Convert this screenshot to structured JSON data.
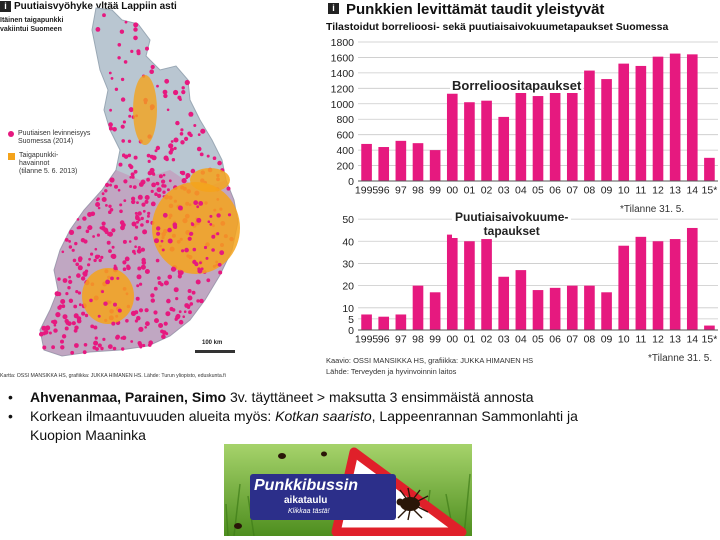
{
  "map": {
    "badge": "i",
    "title": "Puutiaisvyöhyke yltää Lappiin asti",
    "subtitle_lines": [
      "Itäinen taigapunkki",
      "vakiintui Suomeen"
    ],
    "legend": [
      {
        "label_lines": [
          "Puutiaisen levinneisyys",
          "Suomessa (2014)"
        ],
        "color": "#e6197f"
      },
      {
        "label_lines": [
          "Taigapunkki-",
          "havainnot",
          "(tilanne 5. 6. 2013)"
        ],
        "color": "#f4a31b"
      }
    ],
    "scale": "100 km",
    "credit": "Kartta: OSSI MANSIKKA HS, grafiikka: JUKKA HIMANEN HS. Lähde: Turun yliopisto, eduskunta.fi"
  },
  "chart_data": [
    {
      "type": "bar",
      "title": "Punkkien levittämät taudit yleistyvät",
      "subtitle": "Tilastoidut borrelioosi- sekä puutiaisaivokuumetapaukset Suomessa",
      "series_label": "Borrelioositapaukset",
      "categories": [
        "1995",
        "96",
        "97",
        "98",
        "99",
        "00",
        "01",
        "02",
        "03",
        "04",
        "05",
        "06",
        "07",
        "08",
        "09",
        "10",
        "11",
        "12",
        "13",
        "14",
        "15*"
      ],
      "values": [
        480,
        440,
        520,
        490,
        400,
        1130,
        1020,
        1040,
        830,
        1160,
        1100,
        1200,
        1210,
        1430,
        1320,
        1520,
        1490,
        1610,
        1650,
        1640,
        300
      ],
      "yticks": [
        0,
        200,
        400,
        600,
        800,
        1000,
        1200,
        1400,
        1600,
        1800
      ],
      "ylim": [
        0,
        1800
      ],
      "note": "*Tilanne 31. 5.",
      "color": "#e6197f"
    },
    {
      "type": "bar",
      "series_label_lines": [
        "Puutiaisaivokuume-",
        "tapaukset"
      ],
      "categories": [
        "1995",
        "96",
        "97",
        "98",
        "99",
        "00",
        "01",
        "02",
        "03",
        "04",
        "05",
        "06",
        "07",
        "08",
        "09",
        "10",
        "11",
        "12",
        "13",
        "14",
        "15*"
      ],
      "values": [
        7,
        6,
        7,
        20,
        17,
        43,
        40,
        41,
        24,
        27,
        18,
        19,
        20,
        20,
        17,
        38,
        42,
        40,
        41,
        46,
        2
      ],
      "yticks": [
        0,
        5,
        10,
        20,
        30,
        40,
        50
      ],
      "ylim": [
        0,
        55
      ],
      "note": "*Tilanne 31. 5.",
      "color": "#e6197f"
    }
  ],
  "chart_footer": {
    "badge": "i",
    "sources_line": "Kaavio: OSSI MANSIKKA HS, grafiikka: JUKKA HIMANEN HS",
    "source_line": "Lähde: Terveyden ja hyvinvoinnin laitos"
  },
  "bullets": [
    {
      "bold": "Ahvenanmaa, Parainen, Simo",
      "rest": " 3v. täyttäneet > maksutta 3 ensimmäistä annosta"
    },
    {
      "lead": "Korkean ilmaantuvuuden alueita myös: ",
      "italic": "Kotkan saaristo",
      "rest_lines": [
        ", Lappeenrannan Sammonlahti ja",
        "Kuopion Maaninka"
      ]
    }
  ],
  "banner": {
    "title": "Punkkibussin",
    "subtitle": "aikataulu",
    "cta": "Klikkaa tästä!",
    "colors": {
      "grass": "#6fae2b",
      "sign_red": "#e0202a",
      "sign_white": "#ffffff",
      "label_blue": "#2c2f8a"
    }
  }
}
